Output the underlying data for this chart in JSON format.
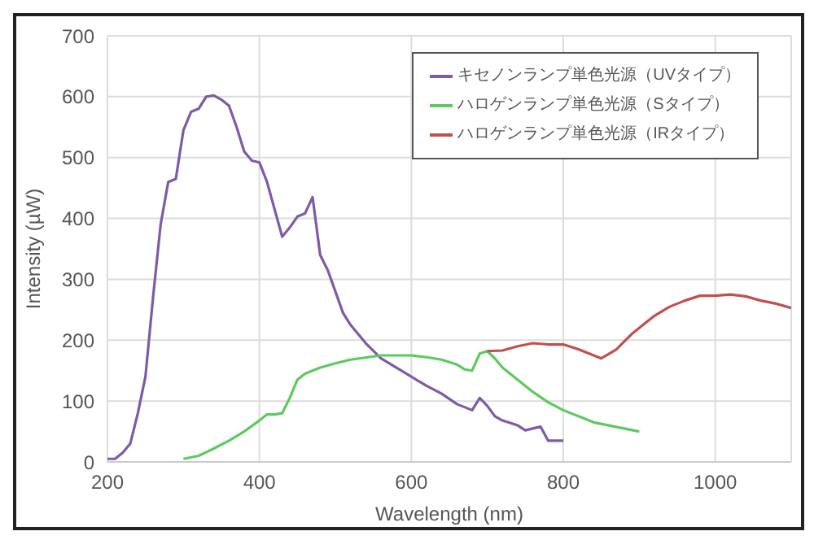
{
  "chart_data": {
    "type": "line",
    "xlabel": "Wavelength (nm)",
    "ylabel": "Intensity (µW)",
    "xlim": [
      200,
      1100
    ],
    "xticks": [
      200,
      400,
      600,
      800,
      1000
    ],
    "ylim": [
      0,
      700
    ],
    "yticks": [
      0,
      100,
      200,
      300,
      400,
      500,
      600,
      700
    ],
    "grid": true,
    "legend": "top right",
    "marker": "none",
    "series": [
      {
        "name": "キセノンランプ単色光源（UVタイプ）",
        "color": "#7d5ba6",
        "x": [
          200,
          210,
          220,
          230,
          240,
          250,
          260,
          270,
          280,
          290,
          300,
          310,
          320,
          330,
          340,
          350,
          360,
          370,
          380,
          390,
          400,
          410,
          420,
          430,
          440,
          450,
          460,
          470,
          480,
          490,
          500,
          510,
          520,
          540,
          560,
          580,
          600,
          620,
          640,
          660,
          680,
          690,
          700,
          710,
          720,
          740,
          750,
          760,
          770,
          780,
          800
        ],
        "values": [
          5,
          5,
          15,
          30,
          80,
          140,
          270,
          390,
          460,
          465,
          545,
          575,
          580,
          600,
          602,
          595,
          585,
          550,
          510,
          495,
          492,
          460,
          415,
          370,
          385,
          403,
          408,
          435,
          340,
          315,
          280,
          245,
          225,
          195,
          170,
          155,
          140,
          125,
          112,
          95,
          85,
          105,
          92,
          75,
          68,
          60,
          52,
          55,
          58,
          35,
          35
        ]
      },
      {
        "name": "ハロゲンランプ単色光源（Sタイプ）",
        "color": "#5ec95e",
        "x": [
          300,
          320,
          340,
          360,
          380,
          400,
          410,
          420,
          430,
          440,
          450,
          460,
          480,
          500,
          520,
          560,
          600,
          620,
          640,
          660,
          670,
          680,
          690,
          700,
          710,
          720,
          740,
          760,
          780,
          800,
          820,
          840,
          860,
          880,
          900
        ],
        "values": [
          5,
          10,
          22,
          35,
          50,
          68,
          78,
          78,
          80,
          105,
          135,
          145,
          155,
          162,
          168,
          175,
          175,
          172,
          168,
          160,
          152,
          150,
          178,
          182,
          170,
          155,
          135,
          115,
          98,
          85,
          75,
          65,
          60,
          55,
          50
        ]
      },
      {
        "name": "ハロゲンランプ単色光源（IRタイプ）",
        "color": "#c0504d",
        "x": [
          700,
          720,
          740,
          760,
          780,
          800,
          820,
          840,
          850,
          870,
          890,
          900,
          920,
          940,
          960,
          980,
          1000,
          1020,
          1040,
          1060,
          1080,
          1100
        ],
        "values": [
          182,
          183,
          190,
          195,
          193,
          193,
          185,
          175,
          170,
          185,
          210,
          220,
          240,
          255,
          265,
          273,
          273,
          275,
          272,
          265,
          260,
          253
        ]
      }
    ]
  }
}
